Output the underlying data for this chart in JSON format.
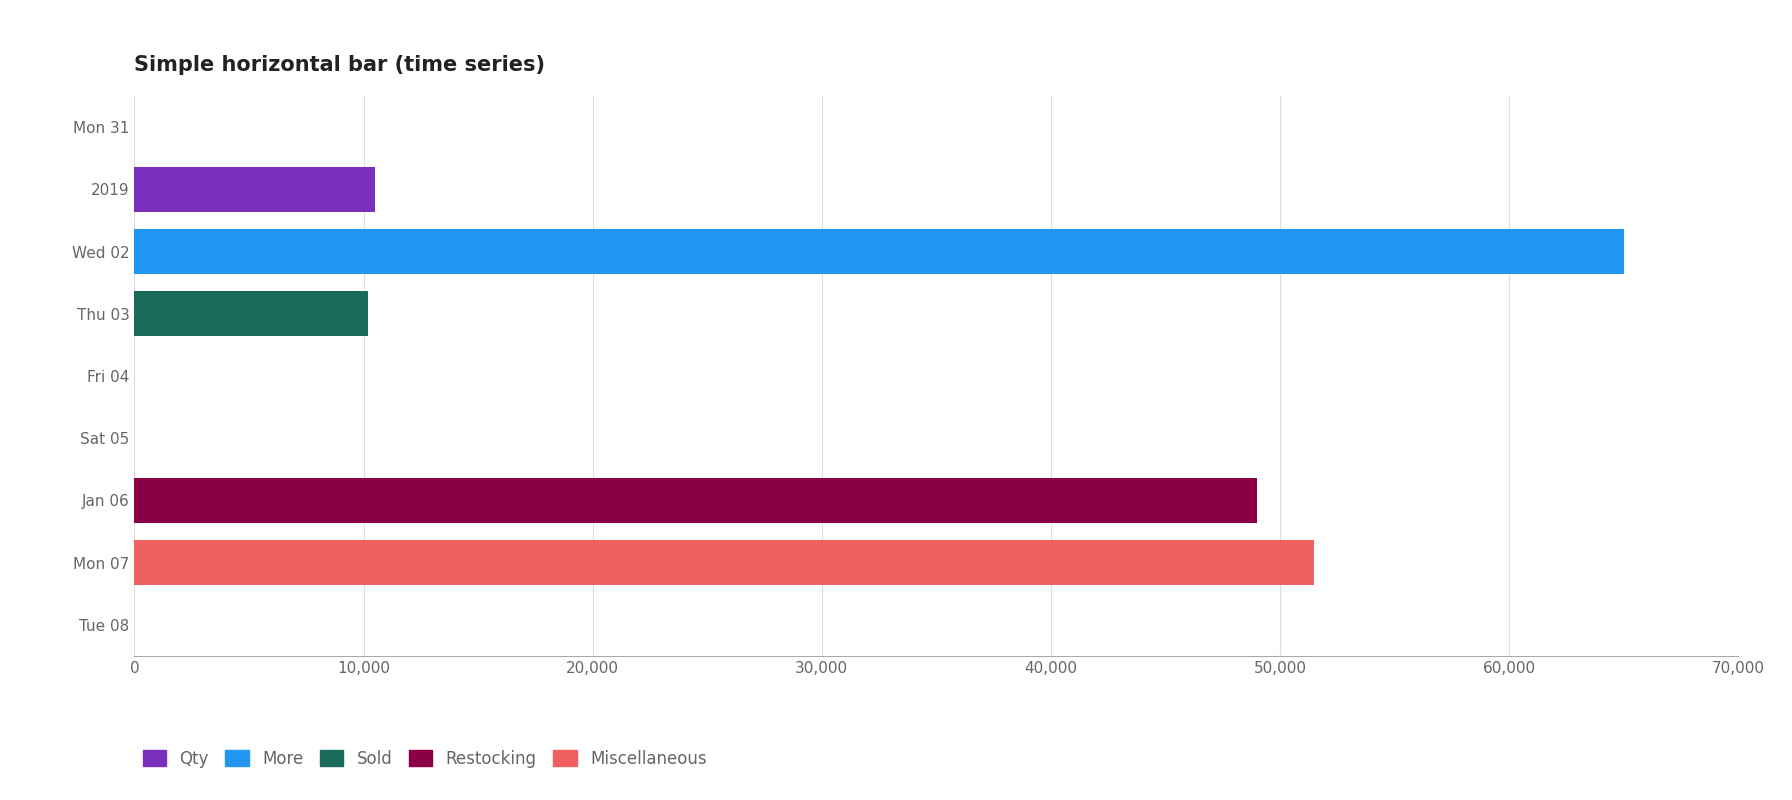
{
  "title": "Simple horizontal bar (time series)",
  "categories": [
    "Mon 31",
    "2019",
    "Wed 02",
    "Thu 03",
    "Fri 04",
    "Sat 05",
    "Jan 06",
    "Mon 07",
    "Tue 08"
  ],
  "bars": [
    {
      "label": "2019",
      "category": "2019",
      "value": 10500,
      "color": "#7B2FBE"
    },
    {
      "label": "Wed 02",
      "category": "Wed 02",
      "value": 65000,
      "color": "#2196F3"
    },
    {
      "label": "Thu 03",
      "category": "Thu 03",
      "value": 10200,
      "color": "#1B6B5A"
    },
    {
      "label": "Jan 06",
      "category": "Jan 06",
      "value": 49000,
      "color": "#8B0045"
    },
    {
      "label": "Mon 07",
      "category": "Mon 07",
      "value": 51500,
      "color": "#F06060"
    }
  ],
  "legend": [
    {
      "label": "Qty",
      "color": "#7B2FBE"
    },
    {
      "label": "More",
      "color": "#2196F3"
    },
    {
      "label": "Sold",
      "color": "#1B6B5A"
    },
    {
      "label": "Restocking",
      "color": "#8B0045"
    },
    {
      "label": "Miscellaneous",
      "color": "#F06060"
    }
  ],
  "xlim": [
    0,
    70000
  ],
  "xticks": [
    0,
    10000,
    20000,
    30000,
    40000,
    50000,
    60000,
    70000
  ],
  "background_color": "#ffffff",
  "grid_color": "#dddddd",
  "bar_height": 0.72,
  "title_fontsize": 15,
  "tick_fontsize": 11,
  "legend_fontsize": 12
}
